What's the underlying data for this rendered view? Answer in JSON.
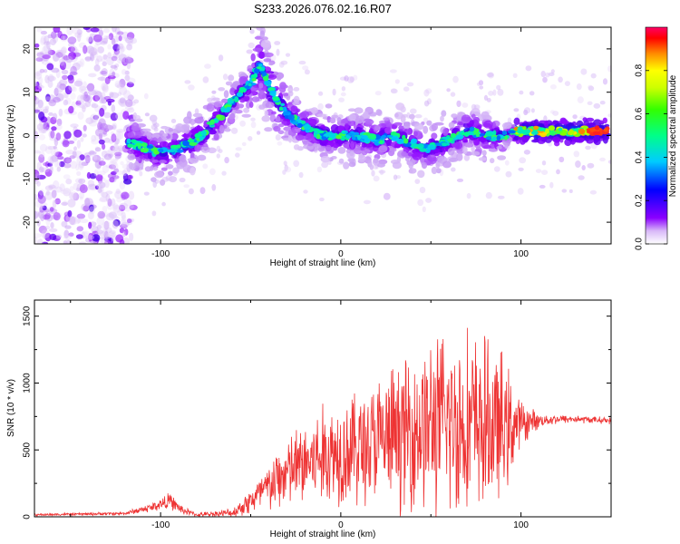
{
  "title": "S233.2026.076.02.16.R07",
  "chart_data": [
    {
      "type": "heatmap",
      "title": "S233.2026.076.02.16.R07",
      "xlabel": "Height of straight line (km)",
      "ylabel": "Frequency (Hz)",
      "xlim": [
        -170,
        150
      ],
      "ylim": [
        -25,
        25
      ],
      "xticks": [
        -100,
        0,
        100
      ],
      "yticks": [
        -20,
        -10,
        0,
        10,
        20
      ],
      "xtick_labels": [
        "-100",
        "0",
        "100"
      ],
      "ytick_labels": [
        "-20",
        "-10",
        "0",
        "10",
        "20"
      ],
      "ridge": {
        "x": [
          -115,
          -100,
          -90,
          -80,
          -70,
          -60,
          -50,
          -45,
          -40,
          -35,
          -30,
          -20,
          -10,
          0,
          10,
          20,
          30,
          40,
          50,
          60,
          70,
          80,
          90,
          100,
          110,
          120,
          130,
          140,
          147
        ],
        "y": [
          -2,
          -4,
          -3,
          -1,
          3,
          8,
          12,
          16,
          12,
          8,
          5,
          2,
          0,
          0,
          0,
          -1,
          0,
          -2,
          -3,
          -1,
          1,
          0,
          0,
          1,
          1,
          1,
          1,
          1,
          1
        ]
      },
      "colorbar": {
        "label": "Normalized spectral amplitude",
        "range": [
          0.0,
          1.0
        ],
        "ticks": [
          "0.0",
          "0.2",
          "0.4",
          "0.6",
          "0.8"
        ],
        "tick_values": [
          0.0,
          0.2,
          0.4,
          0.6,
          0.8
        ]
      }
    },
    {
      "type": "line",
      "xlabel": "Height of straight line (km)",
      "ylabel": "SNR (10 * v/v)",
      "xlim": [
        -170,
        150
      ],
      "ylim": [
        0,
        1620
      ],
      "xticks": [
        -100,
        0,
        100
      ],
      "yticks": [
        0,
        500,
        1000,
        1500
      ],
      "xtick_labels": [
        "-100",
        "0",
        "100"
      ],
      "ytick_labels": [
        "0",
        "500",
        "1000",
        "1500"
      ],
      "series": [
        {
          "name": "SNR",
          "color": "#ee3333",
          "envelope_x": [
            -170,
            -120,
            -105,
            -95,
            -88,
            -80,
            -60,
            -50,
            -40,
            -30,
            -20,
            -10,
            0,
            10,
            20,
            30,
            40,
            50,
            60,
            70,
            80,
            90,
            100,
            110,
            120,
            130,
            140,
            150
          ],
          "envelope_mean": [
            15,
            25,
            70,
            120,
            50,
            15,
            30,
            120,
            220,
            330,
            400,
            450,
            500,
            520,
            560,
            600,
            660,
            690,
            700,
            700,
            680,
            660,
            700,
            720,
            730,
            730,
            725,
            720
          ],
          "envelope_amp": [
            10,
            15,
            40,
            70,
            40,
            15,
            40,
            120,
            220,
            320,
            380,
            450,
            480,
            520,
            560,
            620,
            700,
            760,
            820,
            820,
            760,
            640,
            200,
            60,
            40,
            35,
            30,
            30
          ]
        }
      ]
    }
  ],
  "colors": {
    "line": "#ee3333",
    "frame": "#000000",
    "background": "#ffffff"
  }
}
